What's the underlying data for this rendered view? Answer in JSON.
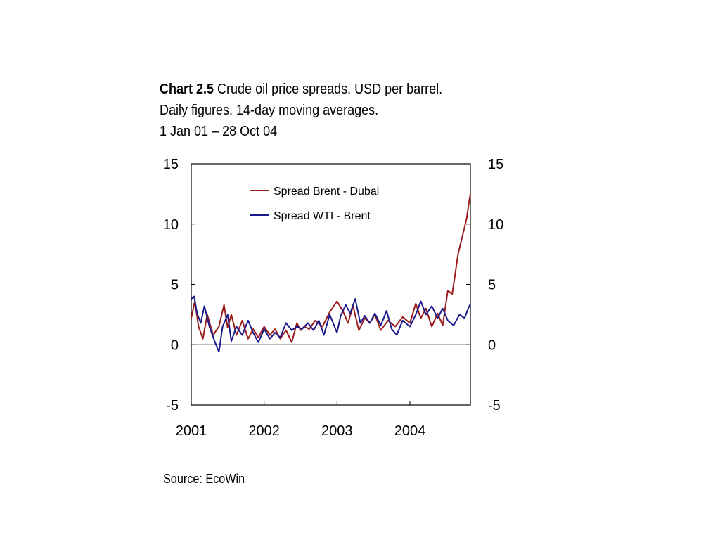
{
  "title": {
    "number": "Chart 2.5",
    "line1": "Crude oil price spreads. USD per barrel.",
    "line2": "Daily figures. 14-day moving averages.",
    "line3": "1 Jan 01 – 28 Oct 04"
  },
  "source": "Source: EcoWin",
  "chart_data": {
    "type": "line",
    "title": "Crude oil price spreads. USD per barrel.",
    "xlabel": "",
    "ylabel": "",
    "xlim": [
      2001.0,
      2004.83
    ],
    "ylim": [
      -5,
      15
    ],
    "x_ticks": [
      "2001",
      "2002",
      "2003",
      "2004"
    ],
    "y_ticks": [
      "15",
      "10",
      "5",
      "0",
      "-5"
    ],
    "y_ticks_right": [
      "15",
      "10",
      "5",
      "0",
      "-5"
    ],
    "grid": false,
    "legend_position": "top-center",
    "series": [
      {
        "name": "Spread Brent - Dubai",
        "color": "#9b1c1c",
        "x": [
          2001.0,
          2001.05,
          2001.1,
          2001.16,
          2001.22,
          2001.3,
          2001.38,
          2001.45,
          2001.5,
          2001.55,
          2001.62,
          2001.7,
          2001.78,
          2001.85,
          2001.92,
          2002.0,
          2002.08,
          2002.15,
          2002.22,
          2002.3,
          2002.38,
          2002.45,
          2002.5,
          2002.55,
          2002.62,
          2002.7,
          2002.8,
          2002.9,
          2003.0,
          2003.08,
          2003.15,
          2003.22,
          2003.3,
          2003.38,
          2003.45,
          2003.52,
          2003.6,
          2003.7,
          2003.8,
          2003.9,
          2004.0,
          2004.08,
          2004.15,
          2004.22,
          2004.3,
          2004.38,
          2004.45,
          2004.52,
          2004.58,
          2004.62,
          2004.66,
          2004.7,
          2004.74,
          2004.78,
          2004.81,
          2004.83
        ],
        "values": [
          2.2,
          3.6,
          1.5,
          0.5,
          2.5,
          0.8,
          1.5,
          3.3,
          1.4,
          2.5,
          0.8,
          2.0,
          0.5,
          1.3,
          0.6,
          1.5,
          0.8,
          1.3,
          0.5,
          1.2,
          0.2,
          1.8,
          1.2,
          1.5,
          1.3,
          2.0,
          1.5,
          2.7,
          3.6,
          2.8,
          1.8,
          3.2,
          1.2,
          2.2,
          1.8,
          2.5,
          1.2,
          2.0,
          1.5,
          2.3,
          1.8,
          3.4,
          2.2,
          3.0,
          1.5,
          2.6,
          1.6,
          4.5,
          4.2,
          5.8,
          7.5,
          8.5,
          9.5,
          10.5,
          11.8,
          12.5
        ]
      },
      {
        "name": "Spread WTI - Brent",
        "color": "#1a1a8c",
        "x": [
          2001.0,
          2001.04,
          2001.08,
          2001.13,
          2001.18,
          2001.25,
          2001.32,
          2001.38,
          2001.43,
          2001.5,
          2001.55,
          2001.62,
          2001.7,
          2001.78,
          2001.85,
          2001.92,
          2002.0,
          2002.08,
          2002.15,
          2002.22,
          2002.3,
          2002.38,
          2002.45,
          2002.52,
          2002.6,
          2002.68,
          2002.75,
          2002.82,
          2002.9,
          2003.0,
          2003.05,
          2003.12,
          2003.18,
          2003.25,
          2003.32,
          2003.38,
          2003.45,
          2003.52,
          2003.6,
          2003.68,
          2003.75,
          2003.82,
          2003.9,
          2004.0,
          2004.08,
          2004.15,
          2004.22,
          2004.3,
          2004.38,
          2004.45,
          2004.52,
          2004.6,
          2004.68,
          2004.75,
          2004.8,
          2004.83
        ],
        "values": [
          3.8,
          4.0,
          2.6,
          1.8,
          3.2,
          1.5,
          0.3,
          -0.6,
          1.5,
          2.5,
          0.3,
          1.5,
          0.8,
          2.0,
          1.0,
          0.2,
          1.3,
          0.5,
          1.0,
          0.6,
          1.8,
          1.2,
          1.5,
          1.3,
          1.8,
          1.2,
          2.0,
          0.8,
          2.5,
          1.0,
          2.4,
          3.3,
          2.6,
          3.8,
          1.8,
          2.4,
          1.8,
          2.6,
          1.6,
          2.8,
          1.3,
          0.8,
          2.0,
          1.5,
          2.5,
          3.6,
          2.5,
          3.2,
          2.2,
          3.0,
          2.0,
          1.6,
          2.5,
          2.2,
          3.0,
          3.4
        ]
      }
    ]
  }
}
